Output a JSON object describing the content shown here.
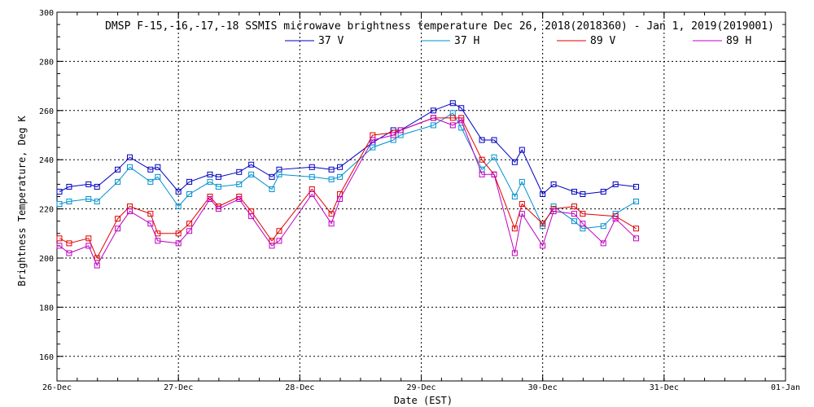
{
  "chart_data": {
    "type": "line",
    "title": "DMSP F-15,-16,-17,-18 SSMIS microwave brightness temperature Dec 26, 2018(2018360) - Jan  1, 2019(2019001)",
    "xlabel": "Date (EST)",
    "ylabel": "Brightness Temperature, Deg K",
    "xlim": [
      0,
      6
    ],
    "ylim": [
      150,
      300
    ],
    "x_ticks": [
      {
        "value": 0,
        "label": "26-Dec"
      },
      {
        "value": 1,
        "label": "27-Dec"
      },
      {
        "value": 2,
        "label": "28-Dec"
      },
      {
        "value": 3,
        "label": "29-Dec"
      },
      {
        "value": 4,
        "label": "30-Dec"
      },
      {
        "value": 5,
        "label": "31-Dec"
      },
      {
        "value": 6,
        "label": "01-Jan"
      }
    ],
    "y_ticks": [
      150,
      160,
      180,
      200,
      220,
      240,
      260,
      280,
      300
    ],
    "y_tick_labels": [
      "160",
      "180",
      "200",
      "220",
      "240",
      "260",
      "280",
      "300"
    ],
    "grid": true,
    "legend_placement": "top-center",
    "series": [
      {
        "name": "37 V",
        "color": "#0000c0",
        "points": [
          [
            0.02,
            227
          ],
          [
            0.1,
            229
          ],
          [
            0.26,
            230
          ],
          [
            0.33,
            229
          ],
          [
            0.5,
            236
          ],
          [
            0.6,
            241
          ],
          [
            0.77,
            236
          ],
          [
            0.83,
            237
          ],
          [
            1.0,
            227
          ],
          [
            1.09,
            231
          ],
          [
            1.26,
            234
          ],
          [
            1.33,
            233
          ],
          [
            1.5,
            235
          ],
          [
            1.6,
            238
          ],
          [
            1.77,
            233
          ],
          [
            1.83,
            236
          ],
          [
            2.1,
            237
          ],
          [
            2.26,
            236
          ],
          [
            2.33,
            237
          ],
          [
            2.6,
            247
          ],
          [
            2.77,
            252
          ],
          [
            2.83,
            252
          ],
          [
            3.1,
            260
          ],
          [
            3.26,
            263
          ],
          [
            3.33,
            261
          ],
          [
            3.5,
            248
          ],
          [
            3.6,
            248
          ],
          [
            3.77,
            239
          ],
          [
            3.83,
            244
          ],
          [
            4.0,
            226
          ],
          [
            4.09,
            230
          ],
          [
            4.26,
            227
          ],
          [
            4.33,
            226
          ],
          [
            4.5,
            227
          ],
          [
            4.6,
            230
          ],
          [
            4.77,
            229
          ]
        ]
      },
      {
        "name": "37 H",
        "color": "#0090d0",
        "points": [
          [
            0.02,
            222
          ],
          [
            0.1,
            223
          ],
          [
            0.26,
            224
          ],
          [
            0.33,
            223
          ],
          [
            0.5,
            231
          ],
          [
            0.6,
            237
          ],
          [
            0.77,
            231
          ],
          [
            0.83,
            233
          ],
          [
            1.0,
            221
          ],
          [
            1.09,
            226
          ],
          [
            1.26,
            231
          ],
          [
            1.33,
            229
          ],
          [
            1.5,
            230
          ],
          [
            1.6,
            234
          ],
          [
            1.77,
            228
          ],
          [
            1.83,
            234
          ],
          [
            2.1,
            233
          ],
          [
            2.26,
            232
          ],
          [
            2.33,
            233
          ],
          [
            2.6,
            245
          ],
          [
            2.77,
            248
          ],
          [
            2.83,
            250
          ],
          [
            3.1,
            254
          ],
          [
            3.26,
            259
          ],
          [
            3.33,
            253
          ],
          [
            3.5,
            236
          ],
          [
            3.6,
            241
          ],
          [
            3.77,
            225
          ],
          [
            3.83,
            231
          ],
          [
            4.0,
            213
          ],
          [
            4.09,
            221
          ],
          [
            4.26,
            215
          ],
          [
            4.33,
            212
          ],
          [
            4.5,
            213
          ],
          [
            4.6,
            218
          ],
          [
            4.77,
            223
          ]
        ]
      },
      {
        "name": "89 V",
        "color": "#e00000",
        "points": [
          [
            0.02,
            208
          ],
          [
            0.1,
            206
          ],
          [
            0.26,
            208
          ],
          [
            0.33,
            200
          ],
          [
            0.5,
            216
          ],
          [
            0.6,
            221
          ],
          [
            0.77,
            218
          ],
          [
            0.83,
            210
          ],
          [
            1.0,
            210
          ],
          [
            1.09,
            214
          ],
          [
            1.26,
            225
          ],
          [
            1.33,
            221
          ],
          [
            1.5,
            225
          ],
          [
            1.6,
            219
          ],
          [
            1.77,
            207
          ],
          [
            1.83,
            211
          ],
          [
            2.1,
            228
          ],
          [
            2.26,
            218
          ],
          [
            2.33,
            226
          ],
          [
            2.6,
            250
          ],
          [
            2.77,
            251
          ],
          [
            2.83,
            252
          ],
          [
            3.1,
            257
          ],
          [
            3.26,
            257
          ],
          [
            3.33,
            257
          ],
          [
            3.5,
            240
          ],
          [
            3.6,
            234
          ],
          [
            3.77,
            212
          ],
          [
            3.83,
            222
          ],
          [
            4.0,
            214
          ],
          [
            4.09,
            220
          ],
          [
            4.26,
            221
          ],
          [
            4.33,
            218
          ],
          [
            4.6,
            217
          ],
          [
            4.77,
            212
          ]
        ]
      },
      {
        "name": "89 H",
        "color": "#c000c0",
        "points": [
          [
            0.02,
            205
          ],
          [
            0.1,
            202
          ],
          [
            0.26,
            205
          ],
          [
            0.33,
            197
          ],
          [
            0.5,
            212
          ],
          [
            0.6,
            219
          ],
          [
            0.77,
            214
          ],
          [
            0.83,
            207
          ],
          [
            1.0,
            206
          ],
          [
            1.09,
            211
          ],
          [
            1.26,
            224
          ],
          [
            1.33,
            220
          ],
          [
            1.5,
            224
          ],
          [
            1.6,
            217
          ],
          [
            1.77,
            205
          ],
          [
            1.83,
            207
          ],
          [
            2.1,
            226
          ],
          [
            2.26,
            214
          ],
          [
            2.33,
            224
          ],
          [
            2.6,
            248
          ],
          [
            2.77,
            250
          ],
          [
            2.83,
            252
          ],
          [
            3.1,
            257
          ],
          [
            3.26,
            254
          ],
          [
            3.33,
            256
          ],
          [
            3.5,
            234
          ],
          [
            3.6,
            234
          ],
          [
            3.77,
            202
          ],
          [
            3.83,
            218
          ],
          [
            4.0,
            205
          ],
          [
            4.09,
            219
          ],
          [
            4.26,
            218
          ],
          [
            4.33,
            214
          ],
          [
            4.5,
            206
          ],
          [
            4.6,
            216
          ],
          [
            4.77,
            208
          ]
        ]
      }
    ]
  }
}
